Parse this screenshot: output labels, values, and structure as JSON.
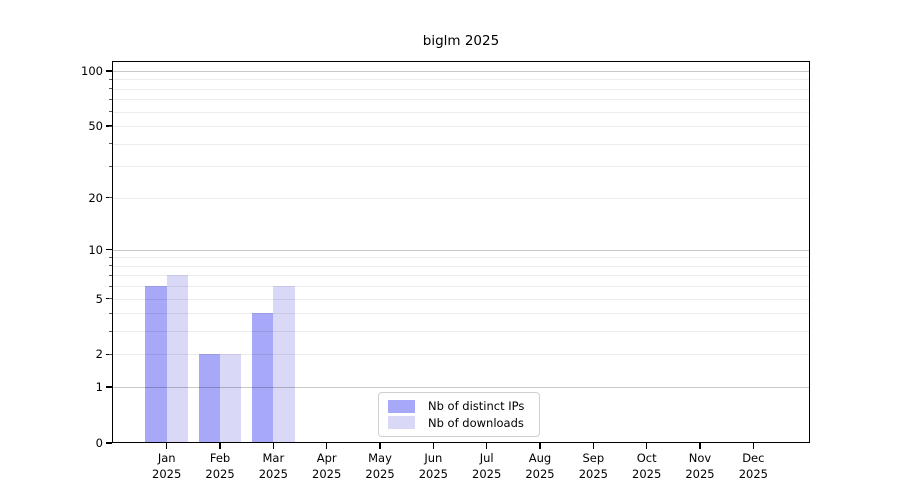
{
  "chart_data": {
    "type": "bar",
    "title": "biglm 2025",
    "categories": [
      {
        "month": "Jan",
        "year": "2025"
      },
      {
        "month": "Feb",
        "year": "2025"
      },
      {
        "month": "Mar",
        "year": "2025"
      },
      {
        "month": "Apr",
        "year": "2025"
      },
      {
        "month": "May",
        "year": "2025"
      },
      {
        "month": "Jun",
        "year": "2025"
      },
      {
        "month": "Jul",
        "year": "2025"
      },
      {
        "month": "Aug",
        "year": "2025"
      },
      {
        "month": "Sep",
        "year": "2025"
      },
      {
        "month": "Oct",
        "year": "2025"
      },
      {
        "month": "Nov",
        "year": "2025"
      },
      {
        "month": "Dec",
        "year": "2025"
      }
    ],
    "series": [
      {
        "name": "Nb of distinct IPs",
        "color": "#a8a8f8",
        "values": [
          6,
          2,
          4,
          0,
          0,
          0,
          0,
          0,
          0,
          0,
          0,
          0
        ]
      },
      {
        "name": "Nb of downloads",
        "color": "#d9d9f7",
        "values": [
          7,
          2,
          6,
          0,
          0,
          0,
          0,
          0,
          0,
          0,
          0,
          0
        ]
      }
    ],
    "y_axis": {
      "scale": "log1p",
      "tick_labels": [
        0,
        1,
        2,
        5,
        10,
        20,
        50,
        100
      ],
      "major_gridlines": [
        1,
        10,
        100
      ],
      "minor_gridlines": [
        2,
        3,
        4,
        5,
        6,
        7,
        8,
        9,
        20,
        30,
        40,
        50,
        60,
        70,
        80,
        90
      ],
      "ylim": [
        0,
        113
      ]
    },
    "legend": {
      "position": "lower center"
    },
    "grid": "both, drawn above bars",
    "colors": {
      "major_grid": "#c7c7c7",
      "minor_grid": "#ededed",
      "spine": "#000000",
      "text": "#000000",
      "background": "#ffffff"
    }
  }
}
